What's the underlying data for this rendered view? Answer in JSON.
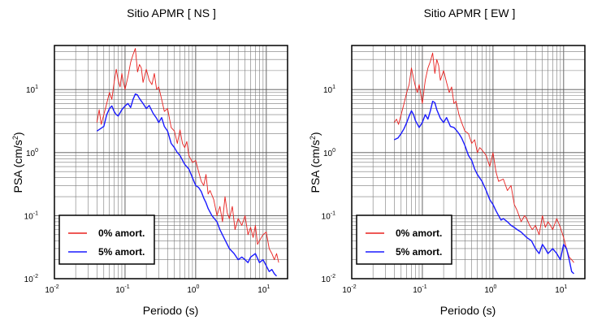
{
  "chart_data": [
    {
      "type": "line",
      "title": "Sitio APMR [ NS ]",
      "xlabel": "Periodo (s)",
      "ylabel_main": "PSA (cm/s",
      "ylabel_sup": "2",
      "ylabel_end": ")",
      "xscale": "log",
      "yscale": "log",
      "xlim": [
        0.01,
        20
      ],
      "ylim": [
        0.01,
        50
      ],
      "grid": true,
      "legend_position": "bottom-left",
      "x_ticks": [
        {
          "base": "10",
          "exp": "-2",
          "value": 0.01
        },
        {
          "base": "10",
          "exp": "-1",
          "value": 0.1
        },
        {
          "base": "10",
          "exp": "0",
          "value": 1
        },
        {
          "base": "10",
          "exp": "1",
          "value": 10
        }
      ],
      "y_ticks": [
        {
          "base": "10",
          "exp": "-2",
          "value": 0.01
        },
        {
          "base": "10",
          "exp": "-1",
          "value": 0.1
        },
        {
          "base": "10",
          "exp": "0",
          "value": 1
        },
        {
          "base": "10",
          "exp": "1",
          "value": 10
        }
      ],
      "series": [
        {
          "name": "0% amort.",
          "color": "#e8201e",
          "x": [
            0.04,
            0.043,
            0.046,
            0.05,
            0.055,
            0.06,
            0.065,
            0.07,
            0.075,
            0.08,
            0.085,
            0.09,
            0.095,
            0.1,
            0.11,
            0.12,
            0.13,
            0.14,
            0.15,
            0.16,
            0.17,
            0.18,
            0.2,
            0.22,
            0.24,
            0.26,
            0.28,
            0.3,
            0.33,
            0.36,
            0.4,
            0.45,
            0.5,
            0.55,
            0.6,
            0.65,
            0.7,
            0.75,
            0.8,
            0.9,
            1.0,
            1.1,
            1.2,
            1.3,
            1.4,
            1.5,
            1.6,
            1.8,
            2.0,
            2.2,
            2.4,
            2.6,
            2.8,
            3.0,
            3.3,
            3.6,
            4.0,
            4.5,
            5.0,
            5.5,
            6.0,
            6.5,
            7.0,
            7.5,
            8.0,
            9.0,
            10.0,
            11.0,
            12.0,
            13.0,
            14.0,
            15.0
          ],
          "y": [
            3.0,
            4.8,
            2.8,
            4.0,
            6.0,
            9.0,
            7.0,
            13.0,
            21.0,
            14.0,
            11.0,
            18.0,
            13.0,
            10.0,
            16.0,
            27.0,
            36.0,
            45.0,
            19.0,
            25.0,
            22.0,
            13.0,
            21.0,
            14.0,
            12.0,
            18.0,
            10.0,
            11.0,
            7.0,
            4.5,
            5.0,
            2.5,
            2.2,
            1.4,
            2.3,
            1.4,
            1.2,
            1.5,
            0.9,
            0.7,
            0.75,
            0.5,
            0.35,
            0.3,
            0.45,
            0.22,
            0.25,
            0.18,
            0.1,
            0.14,
            0.08,
            0.2,
            0.11,
            0.09,
            0.14,
            0.06,
            0.09,
            0.07,
            0.1,
            0.05,
            0.065,
            0.045,
            0.07,
            0.035,
            0.04,
            0.05,
            0.055,
            0.03,
            0.025,
            0.02,
            0.025,
            0.018
          ]
        },
        {
          "name": "5% amort.",
          "color": "#1a1aff",
          "x": [
            0.04,
            0.045,
            0.05,
            0.055,
            0.06,
            0.065,
            0.07,
            0.075,
            0.08,
            0.09,
            0.1,
            0.11,
            0.12,
            0.13,
            0.14,
            0.15,
            0.16,
            0.18,
            0.2,
            0.22,
            0.25,
            0.28,
            0.3,
            0.33,
            0.36,
            0.4,
            0.45,
            0.5,
            0.55,
            0.6,
            0.7,
            0.8,
            0.9,
            1.0,
            1.1,
            1.2,
            1.3,
            1.4,
            1.5,
            1.7,
            2.0,
            2.2,
            2.5,
            3.0,
            3.5,
            4.0,
            4.5,
            5.0,
            5.5,
            6.0,
            7.0,
            8.0,
            9.0,
            10.0,
            11.0,
            12.0,
            13.0,
            14.0
          ],
          "y": [
            2.2,
            2.4,
            2.6,
            4.0,
            5.0,
            5.5,
            4.5,
            4.0,
            3.8,
            4.8,
            5.5,
            6.0,
            5.2,
            7.0,
            8.5,
            8.2,
            7.2,
            6.0,
            5.0,
            5.6,
            4.2,
            3.5,
            3.0,
            3.6,
            2.6,
            2.2,
            1.4,
            1.2,
            1.0,
            0.9,
            0.65,
            0.55,
            0.4,
            0.3,
            0.28,
            0.24,
            0.19,
            0.16,
            0.13,
            0.1,
            0.08,
            0.06,
            0.045,
            0.03,
            0.025,
            0.02,
            0.022,
            0.02,
            0.018,
            0.022,
            0.025,
            0.018,
            0.02,
            0.016,
            0.013,
            0.014,
            0.012,
            0.011
          ]
        }
      ]
    },
    {
      "type": "line",
      "title": "Sitio APMR [ EW ]",
      "xlabel": "Periodo (s)",
      "ylabel_main": "PSA (cm/s",
      "ylabel_sup": "2",
      "ylabel_end": ")",
      "xscale": "log",
      "yscale": "log",
      "xlim": [
        0.01,
        20
      ],
      "ylim": [
        0.01,
        50
      ],
      "grid": true,
      "legend_position": "bottom-left",
      "x_ticks": [
        {
          "base": "10",
          "exp": "-2",
          "value": 0.01
        },
        {
          "base": "10",
          "exp": "-1",
          "value": 0.1
        },
        {
          "base": "10",
          "exp": "0",
          "value": 1
        },
        {
          "base": "10",
          "exp": "1",
          "value": 10
        }
      ],
      "y_ticks": [
        {
          "base": "10",
          "exp": "-2",
          "value": 0.01
        },
        {
          "base": "10",
          "exp": "-1",
          "value": 0.1
        },
        {
          "base": "10",
          "exp": "0",
          "value": 1
        },
        {
          "base": "10",
          "exp": "1",
          "value": 10
        }
      ],
      "series": [
        {
          "name": "0% amort.",
          "color": "#e8201e",
          "x": [
            0.04,
            0.043,
            0.046,
            0.05,
            0.055,
            0.06,
            0.065,
            0.07,
            0.075,
            0.08,
            0.085,
            0.09,
            0.1,
            0.11,
            0.12,
            0.13,
            0.14,
            0.15,
            0.16,
            0.17,
            0.18,
            0.2,
            0.22,
            0.24,
            0.26,
            0.28,
            0.3,
            0.33,
            0.36,
            0.4,
            0.45,
            0.5,
            0.55,
            0.6,
            0.65,
            0.7,
            0.8,
            0.9,
            1.0,
            1.1,
            1.2,
            1.4,
            1.6,
            1.8,
            2.0,
            2.2,
            2.5,
            2.8,
            3.0,
            3.3,
            3.6,
            4.0,
            4.5,
            5.0,
            5.5,
            6.0,
            6.5,
            7.0,
            8.0,
            9.0,
            10.0,
            11.0,
            12.0,
            13.0,
            14.0
          ],
          "y": [
            3.0,
            3.4,
            2.8,
            4.0,
            6.0,
            9.0,
            12.0,
            22.0,
            15.0,
            11.0,
            9.0,
            12.0,
            6.0,
            14.0,
            22.0,
            28.0,
            38.0,
            18.0,
            30.0,
            24.0,
            14.0,
            20.0,
            13.0,
            9.0,
            11.0,
            6.0,
            6.5,
            4.0,
            3.0,
            2.2,
            2.0,
            1.4,
            1.6,
            1.0,
            1.2,
            1.1,
            0.9,
            0.6,
            1.0,
            0.5,
            0.35,
            0.38,
            0.25,
            0.3,
            0.15,
            0.12,
            0.08,
            0.1,
            0.09,
            0.07,
            0.06,
            0.07,
            0.05,
            0.1,
            0.065,
            0.08,
            0.07,
            0.06,
            0.09,
            0.065,
            0.045,
            0.03,
            0.022,
            0.02,
            0.018
          ]
        },
        {
          "name": "5% amort.",
          "color": "#1a1aff",
          "x": [
            0.04,
            0.045,
            0.05,
            0.055,
            0.06,
            0.065,
            0.07,
            0.075,
            0.08,
            0.09,
            0.1,
            0.11,
            0.12,
            0.13,
            0.14,
            0.15,
            0.16,
            0.18,
            0.2,
            0.22,
            0.25,
            0.28,
            0.3,
            0.33,
            0.36,
            0.4,
            0.45,
            0.5,
            0.55,
            0.6,
            0.7,
            0.8,
            0.9,
            1.0,
            1.1,
            1.2,
            1.3,
            1.4,
            1.6,
            1.8,
            2.0,
            2.2,
            2.5,
            3.0,
            3.5,
            4.0,
            4.5,
            5.0,
            5.5,
            6.0,
            7.0,
            8.0,
            9.0,
            10.0,
            11.0,
            12.0,
            13.0,
            14.0
          ],
          "y": [
            1.6,
            1.7,
            2.0,
            2.4,
            3.0,
            3.8,
            4.6,
            4.0,
            3.2,
            2.5,
            3.0,
            4.0,
            3.4,
            4.6,
            6.5,
            6.2,
            4.8,
            3.5,
            3.0,
            3.6,
            2.6,
            2.5,
            2.3,
            2.0,
            1.7,
            1.3,
            0.9,
            0.75,
            0.55,
            0.45,
            0.35,
            0.25,
            0.18,
            0.15,
            0.12,
            0.1,
            0.085,
            0.09,
            0.08,
            0.07,
            0.065,
            0.06,
            0.055,
            0.045,
            0.04,
            0.03,
            0.025,
            0.035,
            0.03,
            0.025,
            0.03,
            0.025,
            0.02,
            0.035,
            0.03,
            0.02,
            0.013,
            0.012
          ]
        }
      ]
    }
  ]
}
